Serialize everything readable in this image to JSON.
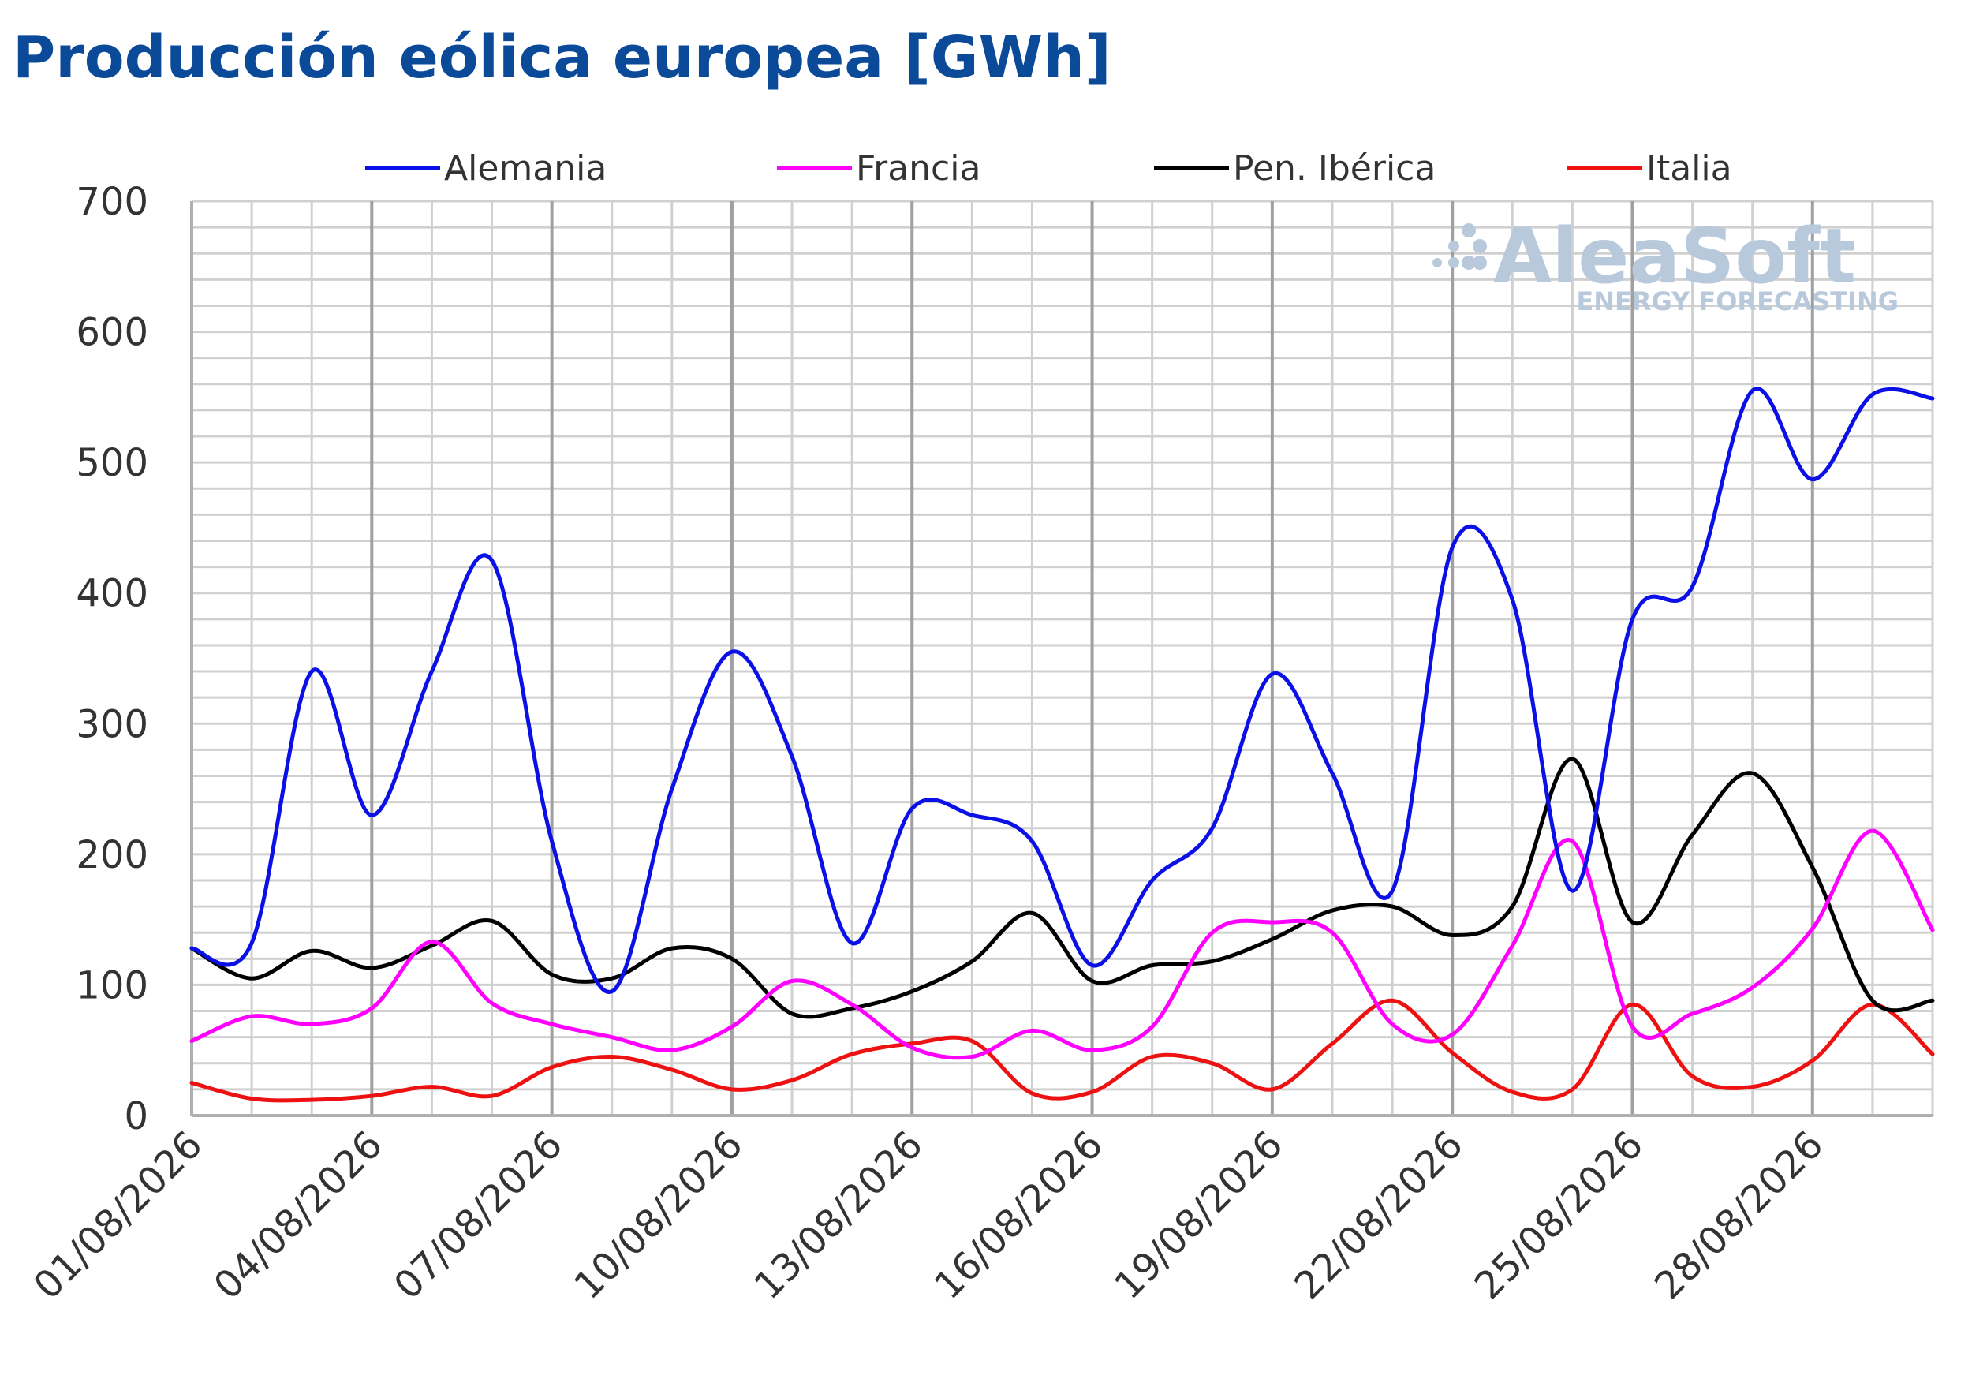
{
  "title": "Producción eólica europea [GWh]",
  "watermark": {
    "brand": "AleaSoft",
    "tagline": "ENERGY FORECASTING"
  },
  "chart_data": {
    "type": "line",
    "title": "Producción eólica europea [GWh]",
    "xlabel": "",
    "ylabel": "",
    "ylim": [
      0,
      700
    ],
    "y_ticks": [
      0,
      100,
      200,
      300,
      400,
      500,
      600,
      700
    ],
    "x_tick_labels": [
      "01/08/2026",
      "04/08/2026",
      "07/08/2026",
      "10/08/2026",
      "13/08/2026",
      "16/08/2026",
      "19/08/2026",
      "22/08/2026",
      "25/08/2026",
      "28/08/2026"
    ],
    "x": [
      "01/08/2026",
      "02/08/2026",
      "03/08/2026",
      "04/08/2026",
      "05/08/2026",
      "06/08/2026",
      "07/08/2026",
      "08/08/2026",
      "09/08/2026",
      "10/08/2026",
      "11/08/2026",
      "12/08/2026",
      "13/08/2026",
      "14/08/2026",
      "15/08/2026",
      "16/08/2026",
      "17/08/2026",
      "18/08/2026",
      "19/08/2026",
      "20/08/2026",
      "21/08/2026",
      "22/08/2026",
      "23/08/2026",
      "24/08/2026",
      "25/08/2026",
      "26/08/2026",
      "27/08/2026",
      "28/08/2026",
      "29/08/2026",
      "30/08/2026"
    ],
    "grid": true,
    "legend_position": "top",
    "series": [
      {
        "name": "Alemania",
        "color": "#0a10e6",
        "values": [
          128,
          132,
          340,
          230,
          340,
          425,
          210,
          95,
          250,
          355,
          275,
          132,
          235,
          230,
          210,
          115,
          180,
          220,
          338,
          262,
          172,
          435,
          395,
          172,
          380,
          405,
          555,
          487,
          552,
          549
        ]
      },
      {
        "name": "Francia",
        "color": "#ff00ff",
        "values": [
          57,
          76,
          70,
          82,
          133,
          86,
          70,
          60,
          50,
          68,
          103,
          85,
          52,
          45,
          65,
          50,
          68,
          140,
          148,
          140,
          70,
          62,
          130,
          210,
          68,
          78,
          98,
          143,
          218,
          142
        ]
      },
      {
        "name": "Pen. Ibérica",
        "color": "#000000",
        "values": [
          128,
          105,
          126,
          113,
          130,
          149,
          108,
          105,
          128,
          120,
          78,
          82,
          95,
          118,
          155,
          103,
          115,
          118,
          135,
          157,
          160,
          138,
          160,
          273,
          148,
          215,
          262,
          190,
          88,
          88
        ]
      },
      {
        "name": "Italia",
        "color": "#ee1111",
        "values": [
          25,
          13,
          12,
          15,
          22,
          15,
          37,
          45,
          35,
          20,
          27,
          47,
          55,
          57,
          17,
          18,
          45,
          40,
          20,
          55,
          88,
          48,
          18,
          20,
          85,
          30,
          22,
          42,
          85,
          47
        ]
      }
    ]
  }
}
